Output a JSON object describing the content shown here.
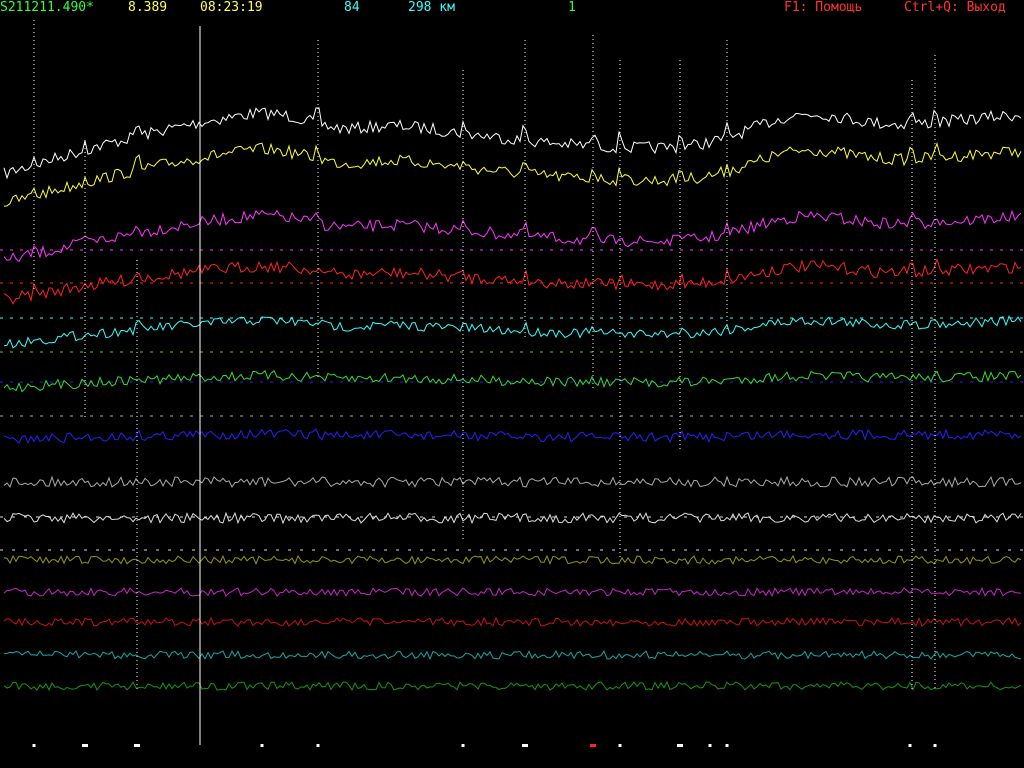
{
  "status": {
    "filename": "S211211.490*",
    "value": "8.389",
    "time": "08:23:19",
    "count": "84",
    "distance": "298 км",
    "index": "1",
    "help": "F1: Помощь",
    "quit": "Ctrl+Q: Выход"
  },
  "colors": {
    "filename": "#33ff33",
    "value": "#ffff55",
    "time": "#ffff55",
    "count": "#33ffff",
    "distance": "#33ffff",
    "index": "#33ff33",
    "help": "#ff3333",
    "quit": "#ff3333"
  },
  "traces": [
    {
      "color": "#ffffff",
      "amp": 6,
      "drift": 1.0
    },
    {
      "color": "#ffff33",
      "amp": 6,
      "drift": 0.9
    },
    {
      "color": "#ff33ff",
      "amp": 6,
      "drift": 0.75
    },
    {
      "color": "#ff2222",
      "amp": 6,
      "drift": 0.55
    },
    {
      "color": "#33ffff",
      "amp": 5,
      "drift": 0.4
    },
    {
      "color": "#33dd33",
      "amp": 5,
      "drift": 0.2
    },
    {
      "color": "#2222ff",
      "amp": 5,
      "drift": 0.1
    },
    {
      "color": "#aaaaaa",
      "amp": 5,
      "drift": 0
    },
    {
      "color": "#dddddd",
      "amp": 5,
      "drift": 0
    },
    {
      "color": "#999900",
      "amp": 4,
      "drift": 0
    },
    {
      "color": "#cc22cc",
      "amp": 4,
      "drift": 0
    },
    {
      "color": "#cc1111",
      "amp": 4,
      "drift": 0
    },
    {
      "color": "#11aaaa",
      "amp": 4,
      "drift": 0
    },
    {
      "color": "#119911",
      "amp": 4,
      "drift": 0
    }
  ],
  "event_markers": [
    {
      "color": "#ffffff",
      "level": 1
    },
    {
      "color": "#ffffff",
      "level": 2
    },
    {
      "color": "#ffffff",
      "level": 2
    },
    {
      "color": "#ffffff",
      "level": 1
    },
    {
      "color": "#ffffff",
      "level": 1
    },
    {
      "color": "#ffffff",
      "level": 1
    },
    {
      "color": "#ffffff",
      "level": 2
    },
    {
      "color": "#ff2222",
      "level": 2
    },
    {
      "color": "#ffffff",
      "level": 1
    },
    {
      "color": "#ffffff",
      "level": 2
    },
    {
      "color": "#ffffff",
      "level": 1
    },
    {
      "color": "#ffffff",
      "level": 1
    },
    {
      "color": "#ffffff",
      "level": 1
    },
    {
      "color": "#ffffff",
      "level": 1
    }
  ],
  "cursor_color": "#ffffff"
}
